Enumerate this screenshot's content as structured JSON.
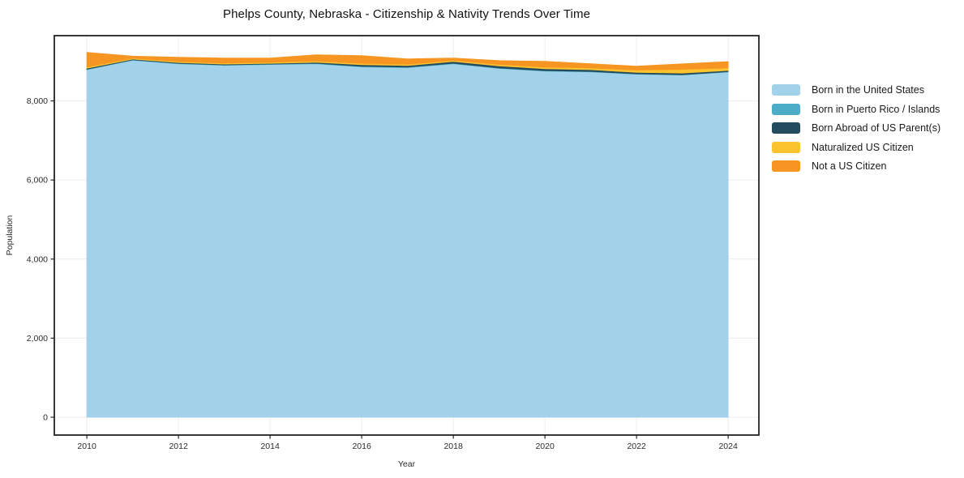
{
  "chart_data": {
    "type": "area",
    "stacked": true,
    "title": "Phelps County, Nebraska - Citizenship & Nativity Trends Over Time",
    "xlabel": "Year",
    "ylabel": "Population",
    "grid": true,
    "legend_position": "right-outside",
    "xlim": [
      2009.29,
      2024.67
    ],
    "ylim": [
      -450,
      9650
    ],
    "x": [
      2010,
      2011,
      2012,
      2013,
      2014,
      2015,
      2016,
      2017,
      2018,
      2019,
      2020,
      2021,
      2022,
      2023,
      2024
    ],
    "series": [
      {
        "name": "Born in the United States",
        "color": "#a2d2ea",
        "values": [
          8790,
          9030,
          8940,
          8900,
          8920,
          8940,
          8860,
          8840,
          8940,
          8820,
          8755,
          8735,
          8675,
          8655,
          8730
        ]
      },
      {
        "name": "Born in Puerto Rico / Islands",
        "color": "#4badc7",
        "values": [
          10,
          8,
          10,
          10,
          10,
          12,
          15,
          15,
          12,
          10,
          10,
          10,
          10,
          8,
          10
        ]
      },
      {
        "name": "Born Abroad of US Parent(s)",
        "color": "#254b5e",
        "values": [
          25,
          18,
          20,
          20,
          20,
          25,
          40,
          40,
          45,
          55,
          50,
          45,
          35,
          40,
          30
        ]
      },
      {
        "name": "Naturalized US Citizen",
        "color": "#fdc32f",
        "values": [
          35,
          25,
          25,
          25,
          25,
          30,
          35,
          30,
          28,
          35,
          40,
          45,
          60,
          95,
          65
        ]
      },
      {
        "name": "Not a US Citizen",
        "color": "#f79522",
        "values": [
          365,
          50,
          110,
          130,
          110,
          160,
          195,
          140,
          60,
          100,
          145,
          105,
          100,
          140,
          160
        ]
      }
    ],
    "xticks": {
      "values": [
        2010,
        2012,
        2014,
        2016,
        2018,
        2020,
        2022,
        2024
      ],
      "labels": [
        "2010",
        "2012",
        "2014",
        "2016",
        "2018",
        "2020",
        "2022",
        "2024"
      ]
    },
    "yticks": {
      "values": [
        0,
        2000,
        4000,
        6000,
        8000
      ],
      "labels": [
        "0",
        "2,000",
        "4,000",
        "6,000",
        "8,000"
      ]
    },
    "grid_color": "#ececf1",
    "spine_color": "#222222"
  }
}
